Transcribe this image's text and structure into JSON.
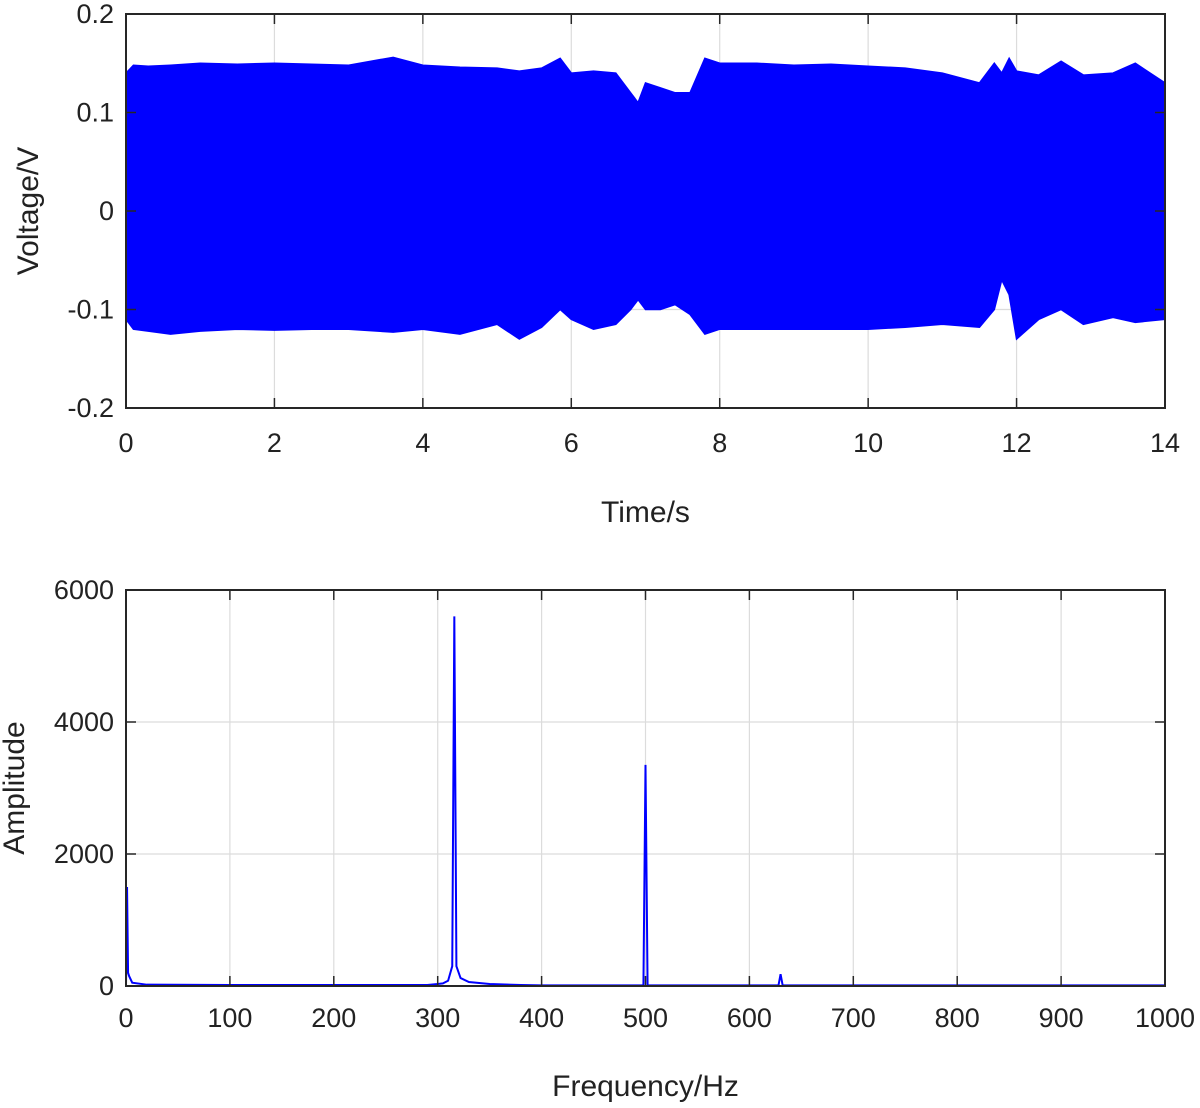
{
  "chart_data": [
    {
      "type": "line",
      "title": "",
      "xlabel": "Time/s",
      "ylabel": "Voltage/V",
      "xlim": [
        0,
        14
      ],
      "ylim": [
        -0.2,
        0.2
      ],
      "xticks": [
        0,
        2,
        4,
        6,
        8,
        10,
        12,
        14
      ],
      "xtick_labels": [
        "0",
        "2",
        "4",
        "6",
        "8",
        "10",
        "12",
        "14"
      ],
      "yticks": [
        -0.2,
        -0.1,
        0,
        0.1,
        0.2
      ],
      "ytick_labels": [
        "-0.2",
        "-0.1",
        "0",
        "0.1",
        "0.2"
      ],
      "grid": true,
      "line_color": "#0000ff",
      "series": [
        {
          "kind": "envelope",
          "x": [
            0,
            0.1,
            0.3,
            0.6,
            1.0,
            1.5,
            2.0,
            2.5,
            3.0,
            3.6,
            4.0,
            4.5,
            5.0,
            5.3,
            5.6,
            5.85,
            6.0,
            6.3,
            6.6,
            6.8,
            6.9,
            7.0,
            7.2,
            7.4,
            7.6,
            7.8,
            8.0,
            8.5,
            9.0,
            9.5,
            10.0,
            10.5,
            11.0,
            11.5,
            11.7,
            11.8,
            11.9,
            12.0,
            12.3,
            12.6,
            12.9,
            13.3,
            13.6,
            14.0
          ],
          "upper": [
            0.14,
            0.148,
            0.147,
            0.148,
            0.15,
            0.149,
            0.15,
            0.149,
            0.148,
            0.156,
            0.148,
            0.146,
            0.145,
            0.142,
            0.145,
            0.155,
            0.14,
            0.142,
            0.14,
            0.12,
            0.11,
            0.13,
            0.125,
            0.12,
            0.12,
            0.155,
            0.15,
            0.15,
            0.148,
            0.149,
            0.147,
            0.145,
            0.14,
            0.13,
            0.15,
            0.14,
            0.155,
            0.142,
            0.138,
            0.152,
            0.138,
            0.14,
            0.15,
            0.13
          ],
          "lower": [
            -0.11,
            -0.12,
            -0.122,
            -0.125,
            -0.122,
            -0.12,
            -0.121,
            -0.12,
            -0.12,
            -0.123,
            -0.12,
            -0.125,
            -0.115,
            -0.13,
            -0.118,
            -0.1,
            -0.11,
            -0.12,
            -0.115,
            -0.1,
            -0.09,
            -0.1,
            -0.1,
            -0.095,
            -0.105,
            -0.125,
            -0.12,
            -0.12,
            -0.12,
            -0.12,
            -0.12,
            -0.118,
            -0.115,
            -0.118,
            -0.1,
            -0.07,
            -0.085,
            -0.13,
            -0.11,
            -0.1,
            -0.115,
            -0.108,
            -0.113,
            -0.11
          ]
        }
      ]
    },
    {
      "type": "line",
      "title": "",
      "xlabel": "Frequency/Hz",
      "ylabel": "Amplitude",
      "xlim": [
        0,
        1000
      ],
      "ylim": [
        0,
        6000
      ],
      "xticks": [
        0,
        100,
        200,
        300,
        400,
        500,
        600,
        700,
        800,
        900,
        1000
      ],
      "xtick_labels": [
        "0",
        "100",
        "200",
        "300",
        "400",
        "500",
        "600",
        "700",
        "800",
        "900",
        "1000"
      ],
      "yticks": [
        0,
        2000,
        4000,
        6000
      ],
      "ytick_labels": [
        "0",
        "2000",
        "4000",
        "6000"
      ],
      "grid": true,
      "line_color": "#0000ff",
      "series": [
        {
          "kind": "spectrum",
          "x": [
            0,
            1,
            2,
            3,
            6,
            20,
            100,
            200,
            290,
            300,
            305,
            310,
            314,
            316,
            318,
            322,
            330,
            350,
            380,
            400,
            480,
            498,
            500,
            502,
            520,
            600,
            628,
            630,
            632,
            700,
            800,
            900,
            1000
          ],
          "y": [
            0,
            1500,
            200,
            150,
            50,
            20,
            15,
            15,
            15,
            30,
            40,
            80,
            300,
            5600,
            300,
            120,
            60,
            30,
            15,
            10,
            10,
            10,
            3350,
            10,
            10,
            10,
            10,
            180,
            10,
            10,
            10,
            10,
            10
          ]
        }
      ]
    }
  ]
}
